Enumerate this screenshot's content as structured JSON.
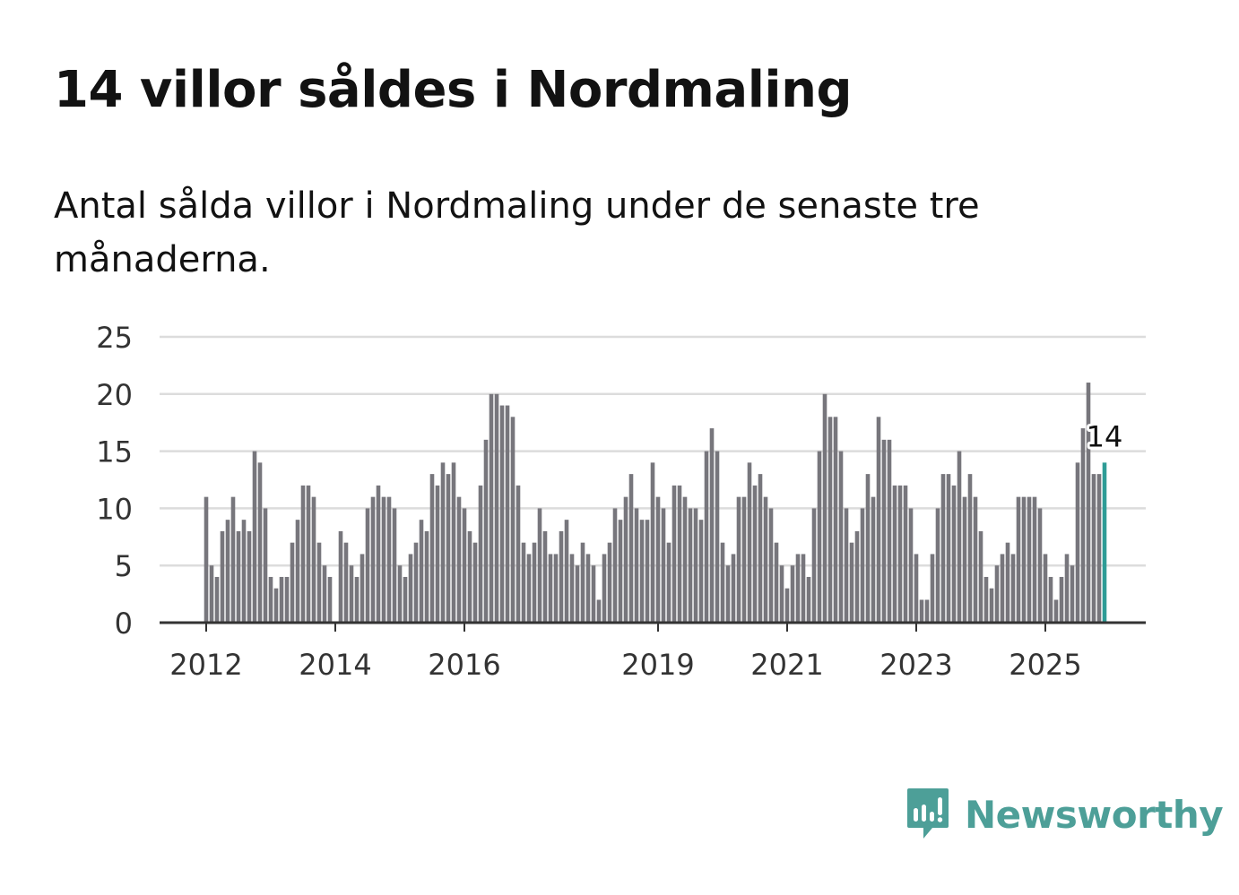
{
  "header": {
    "title": "14 villor såldes i Nordmaling",
    "subtitle": "Antal sålda villor i Nordmaling under de senaste tre månaderna."
  },
  "brand": {
    "name": "Newsworthy",
    "icon": "bar-chart-speech-bubble-icon",
    "color": "#4d9f98"
  },
  "colors": {
    "bar": "#77767c",
    "highlight": "#2e9c96",
    "grid": "#dcdcdc",
    "axis": "#333333",
    "text": "#333333"
  },
  "chart_data": {
    "type": "bar",
    "title": "14 villor såldes i Nordmaling",
    "subtitle": "Antal sålda villor i Nordmaling under de senaste tre månaderna.",
    "xlabel": "",
    "ylabel": "",
    "ylim": [
      0,
      25
    ],
    "y_ticks": [
      0,
      5,
      10,
      15,
      20,
      25
    ],
    "grid": true,
    "start": "2012-01",
    "x_tick_labels": [
      {
        "label": "2012",
        "index": 0
      },
      {
        "label": "2014",
        "index": 24
      },
      {
        "label": "2016",
        "index": 48
      },
      {
        "label": "2019",
        "index": 84
      },
      {
        "label": "2021",
        "index": 108
      },
      {
        "label": "2023",
        "index": 132
      },
      {
        "label": "2025",
        "index": 156
      }
    ],
    "values": [
      11,
      5,
      4,
      8,
      9,
      11,
      8,
      9,
      8,
      15,
      14,
      10,
      4,
      3,
      4,
      4,
      7,
      9,
      12,
      12,
      11,
      7,
      5,
      4,
      0,
      8,
      7,
      5,
      4,
      6,
      10,
      11,
      12,
      11,
      11,
      10,
      5,
      4,
      6,
      7,
      9,
      8,
      13,
      12,
      14,
      13,
      14,
      11,
      10,
      8,
      7,
      12,
      16,
      20,
      20,
      19,
      19,
      18,
      12,
      7,
      6,
      7,
      10,
      8,
      6,
      6,
      8,
      9,
      6,
      5,
      7,
      6,
      5,
      2,
      6,
      7,
      10,
      9,
      11,
      13,
      10,
      9,
      9,
      14,
      11,
      10,
      7,
      12,
      12,
      11,
      10,
      10,
      9,
      15,
      17,
      15,
      7,
      5,
      6,
      11,
      11,
      14,
      12,
      13,
      11,
      10,
      7,
      5,
      3,
      5,
      6,
      6,
      4,
      10,
      15,
      20,
      18,
      18,
      15,
      10,
      7,
      8,
      10,
      13,
      11,
      18,
      16,
      16,
      12,
      12,
      12,
      10,
      6,
      2,
      2,
      6,
      10,
      13,
      13,
      12,
      15,
      11,
      13,
      11,
      8,
      4,
      3,
      5,
      6,
      7,
      6,
      11,
      11,
      11,
      11,
      10,
      6,
      4,
      2,
      4,
      6,
      5,
      14,
      17,
      21,
      13,
      13,
      14
    ],
    "highlight": {
      "index": 167,
      "value": 14,
      "label": "14"
    }
  }
}
